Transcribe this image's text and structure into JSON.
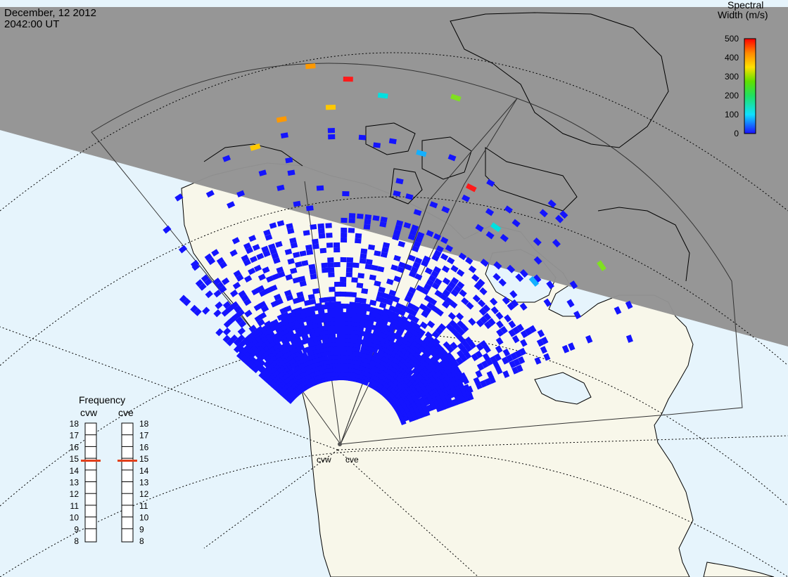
{
  "header": {
    "date": "December, 12 2012",
    "time": "2042:00 UT"
  },
  "colorbar": {
    "title_line1": "Spectral",
    "title_line2": "Width (m/s)",
    "ticks": [
      "500",
      "400",
      "300",
      "200",
      "100",
      "0"
    ],
    "range": [
      0,
      500
    ]
  },
  "frequency_panel": {
    "title": "Frequency",
    "radars": [
      {
        "name": "cvw",
        "value": 14.8
      },
      {
        "name": "cve",
        "value": 14.8
      }
    ],
    "ticks": [
      "18",
      "17",
      "16",
      "15",
      "14",
      "13",
      "12",
      "11",
      "10",
      "9",
      "8"
    ],
    "range": [
      8,
      18
    ]
  },
  "sites": [
    {
      "name": "cvw"
    },
    {
      "name": "cve"
    }
  ],
  "colors": {
    "ocean": "#e6f4fc",
    "land": "#f8f7ea",
    "night": "#939393",
    "dominant_echo": "#1414ff",
    "freq_marker": "#e2401c"
  },
  "field_of_view": {
    "echo_color_value": "0",
    "colored_echo_values": [
      "150",
      "250",
      "300",
      "350",
      "400",
      "500"
    ]
  }
}
